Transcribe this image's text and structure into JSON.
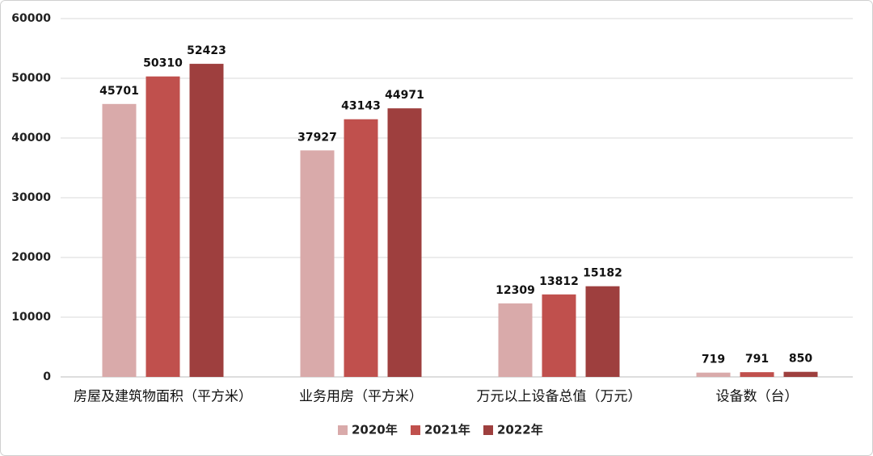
{
  "chart_data": {
    "type": "bar",
    "categories": [
      "房屋及建筑物面积（平方米）",
      "业务用房（平方米）",
      "万元以上设备总值（万元）",
      "设备数（台）"
    ],
    "series": [
      {
        "name": "2020年",
        "color": "#d9aaaa",
        "values": [
          45701,
          37927,
          12309,
          719
        ]
      },
      {
        "name": "2021年",
        "color": "#c0504d",
        "values": [
          50310,
          43143,
          13812,
          791
        ]
      },
      {
        "name": "2022年",
        "color": "#9e3f3e",
        "values": [
          52423,
          44971,
          15182,
          850
        ]
      }
    ],
    "ylim": [
      0,
      60000
    ],
    "yticks": [
      0,
      10000,
      20000,
      30000,
      40000,
      50000,
      60000
    ],
    "grid": true,
    "legend": "bottom"
  }
}
